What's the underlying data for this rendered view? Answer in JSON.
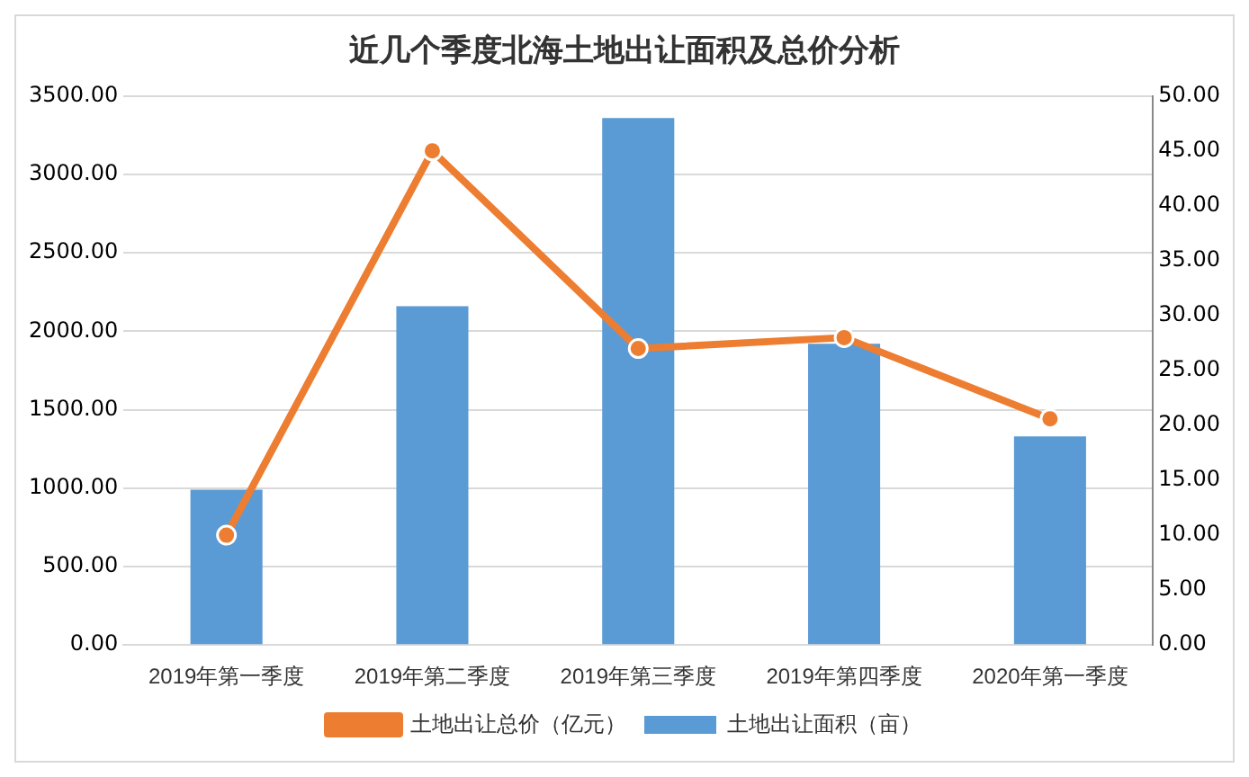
{
  "chart_data": {
    "type": "bar",
    "title": "近几个季度北海土地出让面积及总价分析",
    "categories": [
      "2019年第一季度",
      "2019年第二季度",
      "2019年第三季度",
      "2019年第四季度",
      "2020年第一季度"
    ],
    "series": [
      {
        "name": "土地出让面积（亩）",
        "color": "#5b9bd5",
        "values": [
          990,
          2160,
          3360,
          1920,
          1330
        ]
      },
      {
        "name": "土地出让总价（亿元）",
        "type": "line",
        "axis": "y2",
        "color": "#ed7d31",
        "values": [
          10,
          45,
          27,
          28,
          20.6
        ]
      }
    ],
    "ylim": [
      0,
      3500
    ],
    "yticks": [
      {
        "value": 0,
        "label": "0.00"
      },
      {
        "value": 500,
        "label": "500.00"
      },
      {
        "value": 1000,
        "label": "1000.00"
      },
      {
        "value": 1500,
        "label": "1500.00"
      },
      {
        "value": 2000,
        "label": "2000.00"
      },
      {
        "value": 2500,
        "label": "2500.00"
      },
      {
        "value": 3000,
        "label": "3000.00"
      },
      {
        "value": 3500,
        "label": "3500.00"
      }
    ],
    "y2lim": [
      0,
      50
    ],
    "y2ticks": [
      {
        "value": 0,
        "label": "0.00"
      },
      {
        "value": 5,
        "label": "5.00"
      },
      {
        "value": 10,
        "label": "10.00"
      },
      {
        "value": 15,
        "label": "15.00"
      },
      {
        "value": 20,
        "label": "20.00"
      },
      {
        "value": 25,
        "label": "25.00"
      },
      {
        "value": 30,
        "label": "30.00"
      },
      {
        "value": 35,
        "label": "35.00"
      },
      {
        "value": 40,
        "label": "40.00"
      },
      {
        "value": 45,
        "label": "45.00"
      },
      {
        "value": 50,
        "label": "50.00"
      }
    ],
    "grid": "y",
    "legend": "bottom",
    "marker": "circle"
  }
}
